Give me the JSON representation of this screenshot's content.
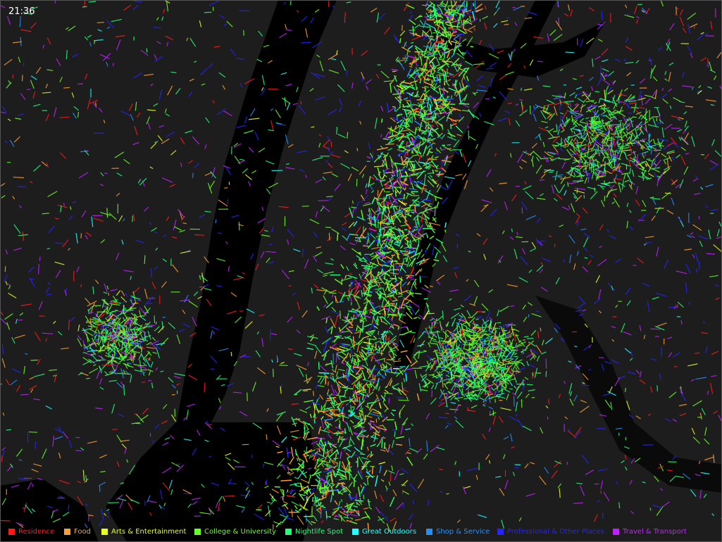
{
  "clock": "21:36",
  "legend": [
    {
      "label": "Residence",
      "color": "#ff1a1a"
    },
    {
      "label": "Food",
      "color": "#ffa030"
    },
    {
      "label": "Arts & Entertainment",
      "color": "#e8ff20"
    },
    {
      "label": "College & University",
      "color": "#66ff22"
    },
    {
      "label": "Nightlife Spot",
      "color": "#22ff77"
    },
    {
      "label": "Great Outdoors",
      "color": "#22ffff"
    },
    {
      "label": "Shop & Service",
      "color": "#2290ff"
    },
    {
      "label": "Professional & Other Places",
      "color": "#2424ff"
    },
    {
      "label": "Travel & Transport",
      "color": "#c022ff"
    }
  ]
}
